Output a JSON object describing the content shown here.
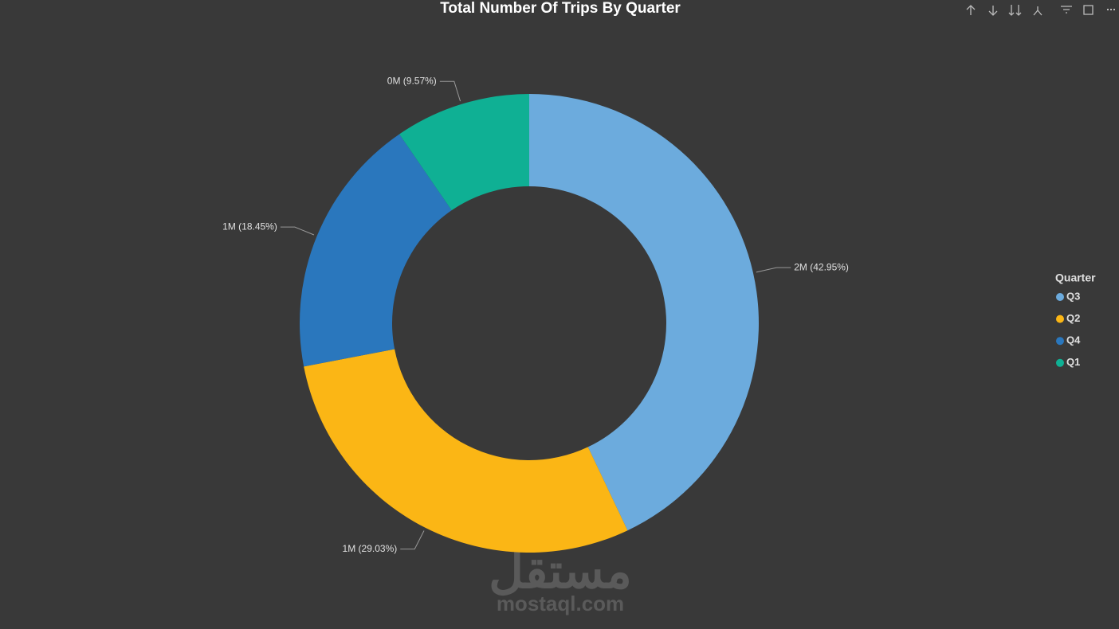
{
  "chart_data": {
    "type": "donut",
    "title": "Total Number Of Trips By Quarter",
    "categories": [
      "Q3",
      "Q2",
      "Q4",
      "Q1"
    ],
    "values": [
      42.95,
      29.03,
      18.45,
      9.57
    ],
    "value_labels": [
      "2M (42.95%)",
      "1M (29.03%)",
      "1M (18.45%)",
      "0M (9.57%)"
    ],
    "colors": [
      "#6cabdd",
      "#fbb615",
      "#2a77bd",
      "#0fb094"
    ],
    "legend_title": "Quarter",
    "legend": "right"
  },
  "watermark": {
    "arabic": "مستقل",
    "latin": "mostaql.com"
  }
}
